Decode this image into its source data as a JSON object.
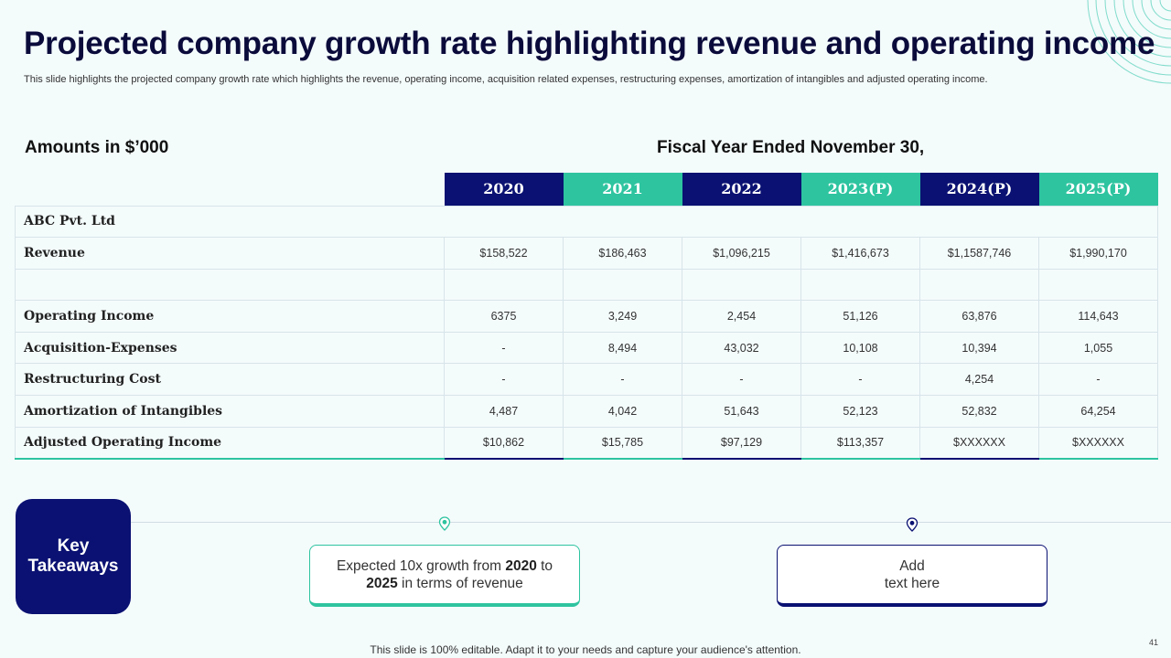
{
  "slide": {
    "title": "Projected company growth rate highlighting revenue and operating income",
    "subtitle": "This slide highlights the projected company growth rate which highlights the revenue, operating income, acquisition related expenses, restructuring expenses, amortization of intangibles and adjusted operating income.",
    "amounts_label": "Amounts in $’000",
    "fiscal_label": "Fiscal Year Ended November 30,",
    "footer": "This slide is 100% editable. Adapt it to your needs and capture your audience's attention.",
    "page_number": "41"
  },
  "colors": {
    "navy": "#0a1172",
    "teal": "#2ec4a0",
    "background": "#f4fbfb"
  },
  "table": {
    "years": [
      "2020",
      "2021",
      "2022",
      "2023(P)",
      "2024(P)",
      "2025(P)"
    ],
    "company": "ABC Pvt. Ltd",
    "rows": [
      {
        "label": "Revenue",
        "values": [
          "$158,522",
          "$186,463",
          "$1,096,215",
          "$1,416,673",
          "$1,1587,746",
          "$1,990,170"
        ]
      },
      {
        "label": "",
        "values": [
          "",
          "",
          "",
          "",
          "",
          ""
        ]
      },
      {
        "label": "Operating Income",
        "values": [
          "6375",
          "3,249",
          "2,454",
          "51,126",
          "63,876",
          "114,643"
        ]
      },
      {
        "label": "Acquisition-Expenses",
        "values": [
          "-",
          "8,494",
          "43,032",
          "10,108",
          "10,394",
          "1,055"
        ]
      },
      {
        "label": "Restructuring Cost",
        "values": [
          "-",
          "-",
          "-",
          "-",
          "4,254",
          "-"
        ]
      },
      {
        "label": "Amortization of Intangibles",
        "values": [
          "4,487",
          "4,042",
          "51,643",
          "52,123",
          "52,832",
          "64,254"
        ]
      },
      {
        "label": "Adjusted Operating Income",
        "values": [
          "$10,862",
          "$15,785",
          "$97,129",
          "$113,357",
          "$XXXXXX",
          "$XXXXXX"
        ]
      }
    ]
  },
  "takeaways": {
    "title_line1": "Key",
    "title_line2": "Takeaways",
    "card1": {
      "pre": "Expected 10x growth from ",
      "year1": "2020",
      "mid": " to",
      "year2": "2025",
      "post": " in terms of revenue"
    },
    "card2": {
      "line1": "Add",
      "line2": "text here"
    }
  }
}
